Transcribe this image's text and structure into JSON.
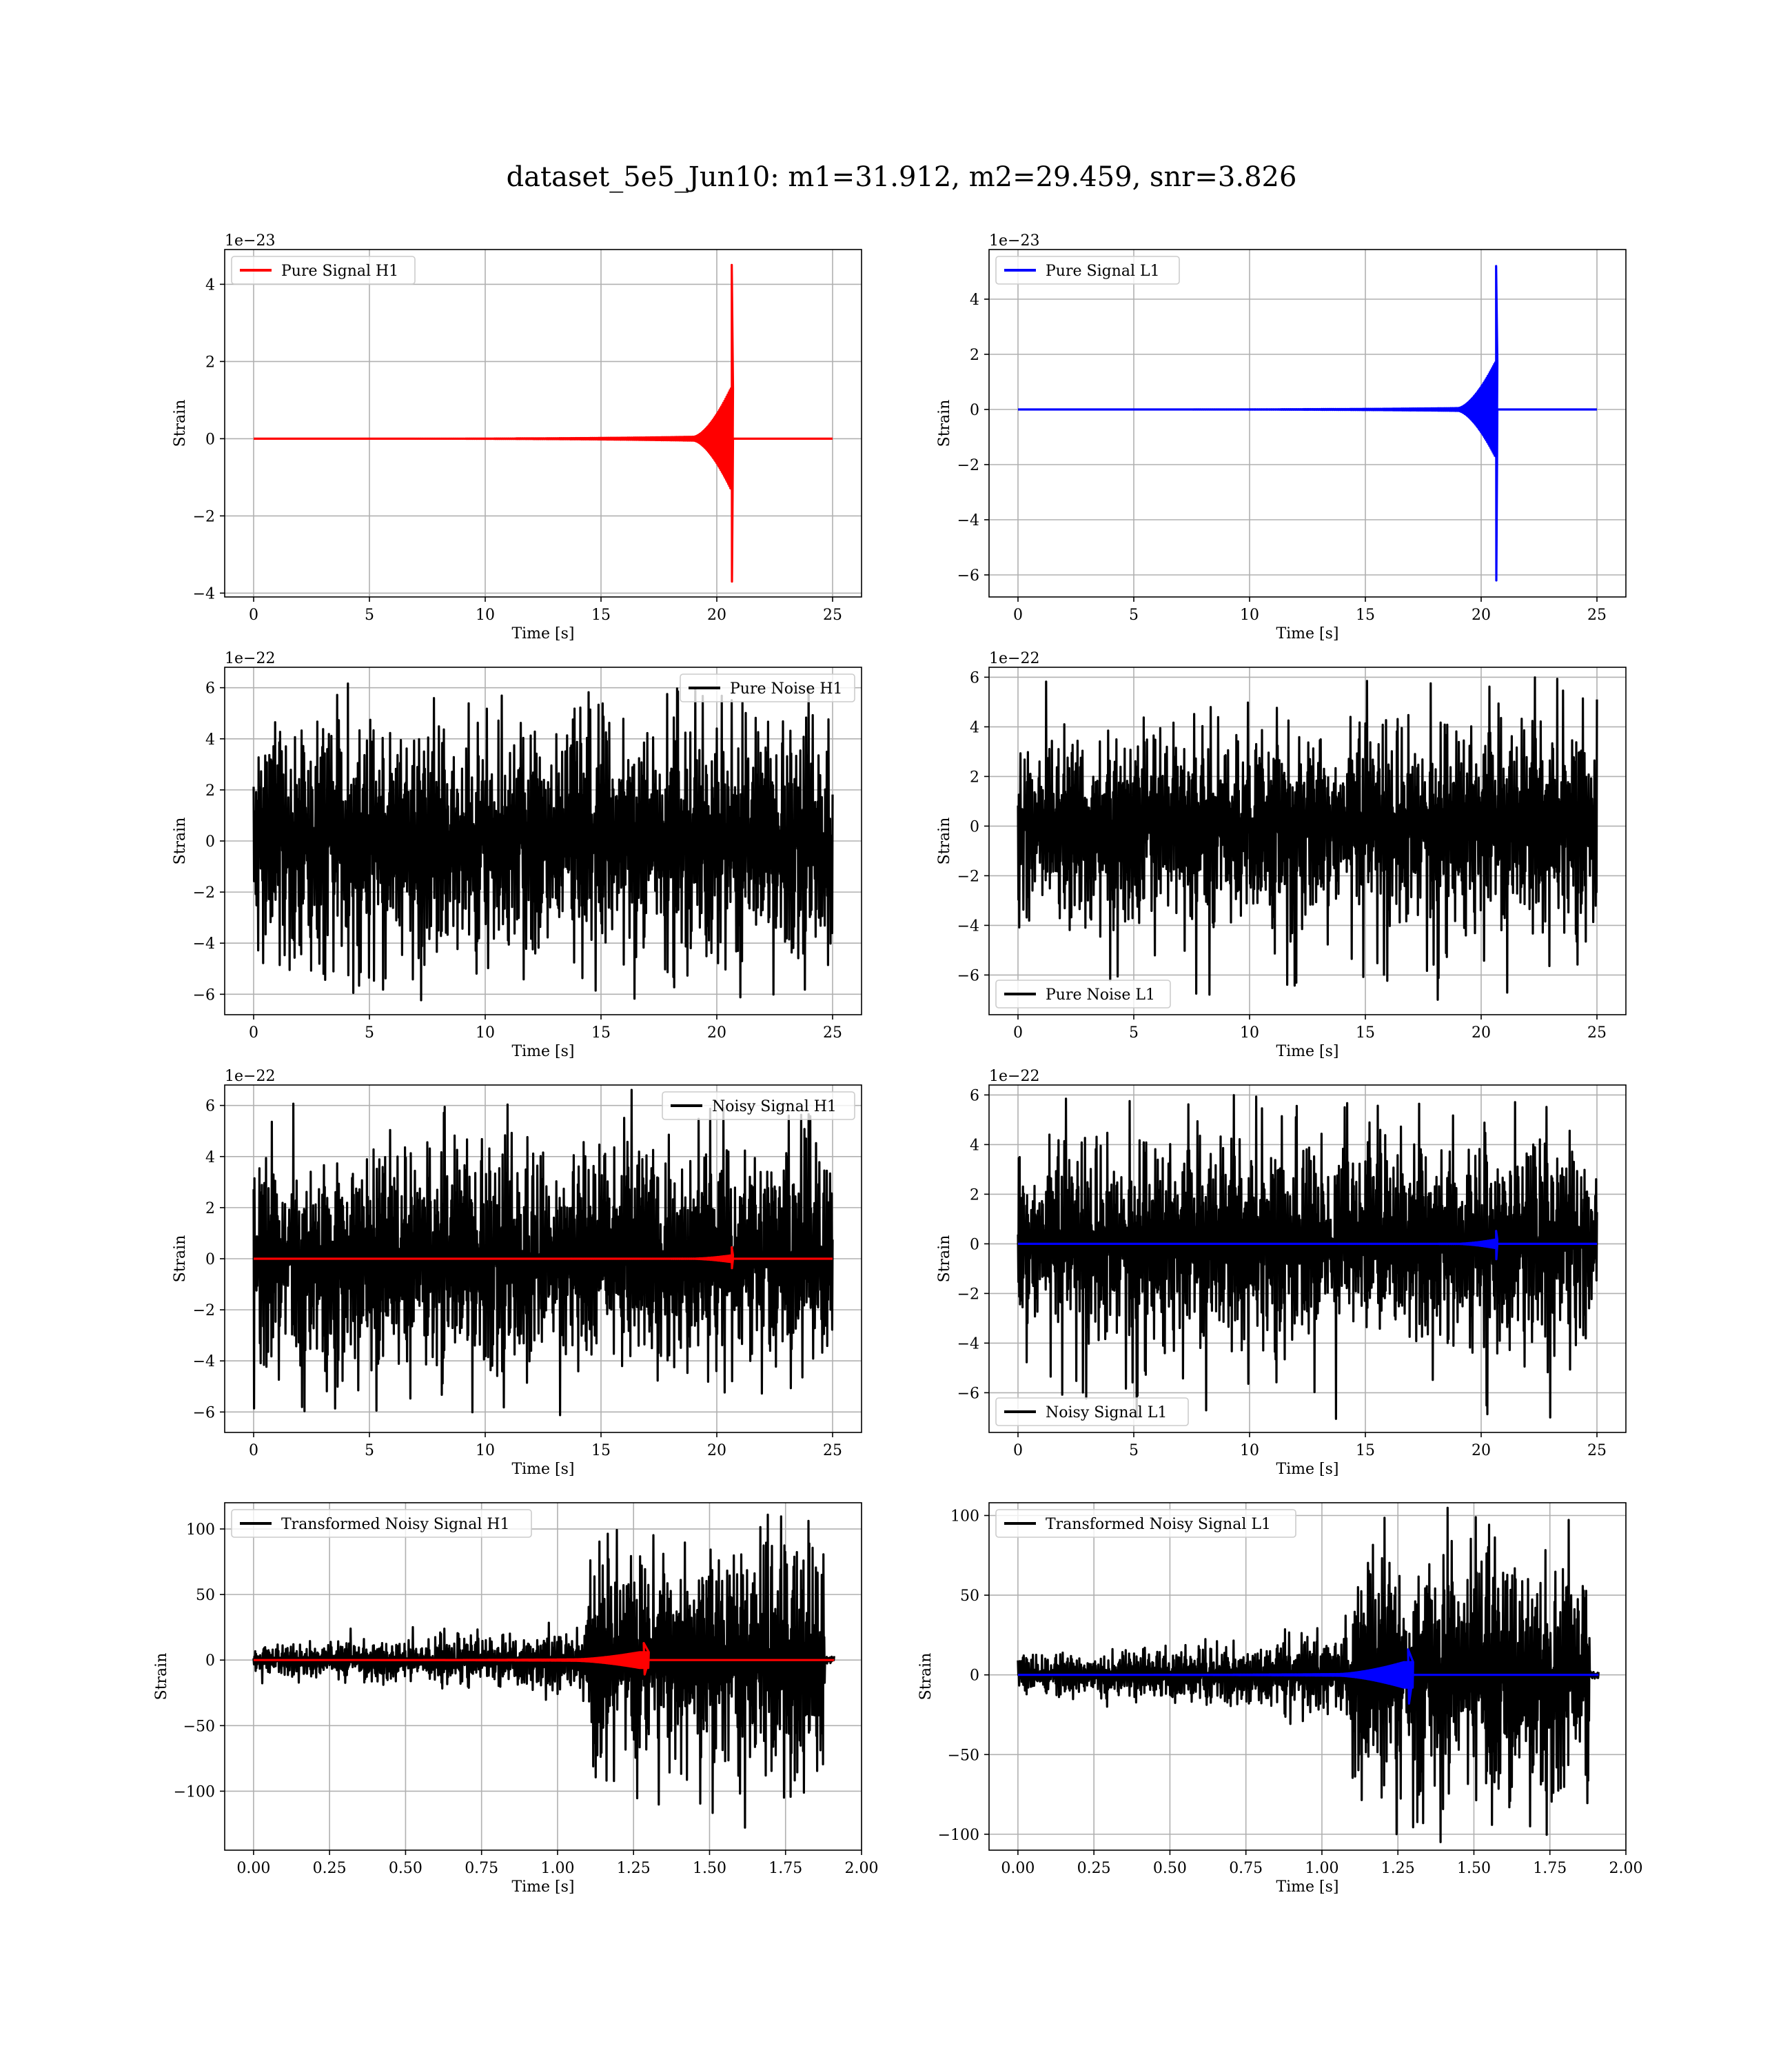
{
  "figure": {
    "title": "dataset_5e5_Jun10: m1=31.912, m2=29.459, snr=3.826"
  },
  "chart_data": [
    {
      "type": "line",
      "name": "pure-signal-h1",
      "xlabel": "Time [s]",
      "ylabel": "Strain",
      "offset_text": "1e−23",
      "xlim": [
        -1.25,
        26.25
      ],
      "ylim": [
        -4.1,
        4.9
      ],
      "xticks": [
        0,
        5,
        10,
        15,
        20,
        25
      ],
      "xtick_labels": [
        "0",
        "5",
        "10",
        "15",
        "20",
        "25"
      ],
      "yticks": [
        -4,
        -2,
        0,
        2,
        4
      ],
      "ytick_labels": [
        "−4",
        "−2",
        "0",
        "2",
        "4"
      ],
      "grid": true,
      "legend_position": "top-left",
      "series": [
        {
          "name": "Pure Signal H1",
          "color": "#ff0000",
          "kind": "chirp",
          "x": [
            0,
            19.0,
            20.6,
            20.7,
            25
          ],
          "amp_low": 0.05,
          "amp_mid": 1.3,
          "peak_pos": 4.5,
          "peak_neg": -3.7
        }
      ]
    },
    {
      "type": "line",
      "name": "pure-signal-l1",
      "xlabel": "Time [s]",
      "ylabel": "Strain",
      "offset_text": "1e−23",
      "xlim": [
        -1.25,
        26.25
      ],
      "ylim": [
        -6.8,
        5.8
      ],
      "xticks": [
        0,
        5,
        10,
        15,
        20,
        25
      ],
      "xtick_labels": [
        "0",
        "5",
        "10",
        "15",
        "20",
        "25"
      ],
      "yticks": [
        -6,
        -4,
        -2,
        0,
        2,
        4
      ],
      "ytick_labels": [
        "−6",
        "−4",
        "−2",
        "0",
        "2",
        "4"
      ],
      "grid": true,
      "legend_position": "top-left",
      "series": [
        {
          "name": "Pure Signal L1",
          "color": "#0000ff",
          "kind": "chirp",
          "x": [
            0,
            19.0,
            20.6,
            20.7,
            25
          ],
          "amp_low": 0.05,
          "amp_mid": 1.7,
          "peak_pos": 5.2,
          "peak_neg": -6.2
        }
      ]
    },
    {
      "type": "line",
      "name": "pure-noise-h1",
      "xlabel": "Time [s]",
      "ylabel": "Strain",
      "offset_text": "1e−22",
      "xlim": [
        -1.25,
        26.25
      ],
      "ylim": [
        -6.8,
        6.8
      ],
      "xticks": [
        0,
        5,
        10,
        15,
        20,
        25
      ],
      "xtick_labels": [
        "0",
        "5",
        "10",
        "15",
        "20",
        "25"
      ],
      "yticks": [
        -6,
        -4,
        -2,
        0,
        2,
        4,
        6
      ],
      "ytick_labels": [
        "−6",
        "−4",
        "−2",
        "0",
        "2",
        "4",
        "6"
      ],
      "grid": true,
      "legend_position": "top-right",
      "series": [
        {
          "name": "Pure Noise H1",
          "color": "#000000",
          "kind": "noise",
          "x": [
            0,
            25
          ],
          "band": [
            -3.6,
            3.6
          ],
          "peak_pos": 6.1,
          "peak_neg": -6.3
        }
      ]
    },
    {
      "type": "line",
      "name": "pure-noise-l1",
      "xlabel": "Time [s]",
      "ylabel": "Strain",
      "offset_text": "1e−22",
      "xlim": [
        -1.25,
        26.25
      ],
      "ylim": [
        -7.6,
        6.4
      ],
      "xticks": [
        0,
        5,
        10,
        15,
        20,
        25
      ],
      "xtick_labels": [
        "0",
        "5",
        "10",
        "15",
        "20",
        "25"
      ],
      "yticks": [
        -6,
        -4,
        -2,
        0,
        2,
        4,
        6
      ],
      "ytick_labels": [
        "−6",
        "−4",
        "−2",
        "0",
        "2",
        "4",
        "6"
      ],
      "grid": true,
      "legend_position": "bottom-left",
      "series": [
        {
          "name": "Pure Noise L1",
          "color": "#000000",
          "kind": "noise",
          "x": [
            0,
            25
          ],
          "band": [
            -3.3,
            3.3
          ],
          "peak_pos": 6.0,
          "peak_neg": -7.1
        }
      ]
    },
    {
      "type": "line",
      "name": "noisy-signal-h1",
      "xlabel": "Time [s]",
      "ylabel": "Strain",
      "offset_text": "1e−22",
      "xlim": [
        -1.25,
        26.25
      ],
      "ylim": [
        -6.8,
        6.8
      ],
      "xticks": [
        0,
        5,
        10,
        15,
        20,
        25
      ],
      "xtick_labels": [
        "0",
        "5",
        "10",
        "15",
        "20",
        "25"
      ],
      "yticks": [
        -6,
        -4,
        -2,
        0,
        2,
        4,
        6
      ],
      "ytick_labels": [
        "−6",
        "−4",
        "−2",
        "0",
        "2",
        "4",
        "6"
      ],
      "grid": true,
      "legend_position": "top-right",
      "series": [
        {
          "name": "Noisy Signal H1",
          "color": "#000000",
          "kind": "noise",
          "x": [
            0,
            25
          ],
          "band": [
            -3.6,
            3.6
          ],
          "peak_pos": 6.1,
          "peak_neg": -6.3
        },
        {
          "name": "",
          "color": "#ff0000",
          "kind": "chirp",
          "x": [
            0,
            19.0,
            20.6,
            20.7,
            25
          ],
          "amp_low": 0.005,
          "amp_mid": 0.13,
          "peak_pos": 0.45,
          "peak_neg": -0.37
        }
      ]
    },
    {
      "type": "line",
      "name": "noisy-signal-l1",
      "xlabel": "Time [s]",
      "ylabel": "Strain",
      "offset_text": "1e−22",
      "xlim": [
        -1.25,
        26.25
      ],
      "ylim": [
        -7.6,
        6.4
      ],
      "xticks": [
        0,
        5,
        10,
        15,
        20,
        25
      ],
      "xtick_labels": [
        "0",
        "5",
        "10",
        "15",
        "20",
        "25"
      ],
      "yticks": [
        -6,
        -4,
        -2,
        0,
        2,
        4,
        6
      ],
      "ytick_labels": [
        "−6",
        "−4",
        "−2",
        "0",
        "2",
        "4",
        "6"
      ],
      "grid": true,
      "legend_position": "bottom-left",
      "series": [
        {
          "name": "Noisy Signal L1",
          "color": "#000000",
          "kind": "noise",
          "x": [
            0,
            25
          ],
          "band": [
            -3.3,
            3.3
          ],
          "peak_pos": 6.0,
          "peak_neg": -7.1
        },
        {
          "name": "",
          "color": "#0000ff",
          "kind": "chirp",
          "x": [
            0,
            19.0,
            20.6,
            20.7,
            25
          ],
          "amp_low": 0.005,
          "amp_mid": 0.17,
          "peak_pos": 0.52,
          "peak_neg": -0.62
        }
      ]
    },
    {
      "type": "line",
      "name": "transformed-noisy-signal-h1",
      "xlabel": "Time [s]",
      "ylabel": "Strain",
      "offset_text": "",
      "xlim": [
        -0.095,
        2.0
      ],
      "ylim": [
        -145,
        120
      ],
      "xticks": [
        0.0,
        0.25,
        0.5,
        0.75,
        1.0,
        1.25,
        1.5,
        1.75,
        2.0
      ],
      "xtick_labels": [
        "0.00",
        "0.25",
        "0.50",
        "0.75",
        "1.00",
        "1.25",
        "1.50",
        "1.75",
        "2.00"
      ],
      "yticks": [
        -100,
        -50,
        0,
        50,
        100
      ],
      "ytick_labels": [
        "−100",
        "−50",
        "0",
        "50",
        "100"
      ],
      "grid": true,
      "legend_position": "top-left",
      "series": [
        {
          "name": "Transformed Noisy Signal H1",
          "color": "#000000",
          "kind": "transformed",
          "x": [
            0,
            1.1,
            1.88,
            1.91
          ],
          "band_low": 8,
          "band_high": 55,
          "peak_pos": 110,
          "peak_neg": -133
        },
        {
          "name": "",
          "color": "#ff0000",
          "kind": "chirp",
          "x": [
            0,
            1.05,
            1.27,
            1.3,
            1.91
          ],
          "amp_low": 0.5,
          "amp_mid": 6,
          "peak_pos": 13,
          "peak_neg": -11
        }
      ]
    },
    {
      "type": "line",
      "name": "transformed-noisy-signal-l1",
      "xlabel": "Time [s]",
      "ylabel": "Strain",
      "offset_text": "",
      "xlim": [
        -0.095,
        2.0
      ],
      "ylim": [
        -110,
        108
      ],
      "xticks": [
        0.0,
        0.25,
        0.5,
        0.75,
        1.0,
        1.25,
        1.5,
        1.75,
        2.0
      ],
      "xtick_labels": [
        "0.00",
        "0.25",
        "0.50",
        "0.75",
        "1.00",
        "1.25",
        "1.50",
        "1.75",
        "2.00"
      ],
      "yticks": [
        -100,
        -50,
        0,
        50,
        100
      ],
      "ytick_labels": [
        "−100",
        "−50",
        "0",
        "50",
        "100"
      ],
      "grid": true,
      "legend_position": "top-left",
      "series": [
        {
          "name": "Transformed Noisy Signal L1",
          "color": "#000000",
          "kind": "transformed",
          "x": [
            0,
            1.1,
            1.88,
            1.91
          ],
          "band_low": 8,
          "band_high": 50,
          "peak_pos": 100,
          "peak_neg": -108
        },
        {
          "name": "",
          "color": "#0000ff",
          "kind": "chirp",
          "x": [
            0,
            1.05,
            1.27,
            1.3,
            1.91
          ],
          "amp_low": 0.5,
          "amp_mid": 8,
          "peak_pos": 16,
          "peak_neg": -18
        }
      ]
    }
  ]
}
